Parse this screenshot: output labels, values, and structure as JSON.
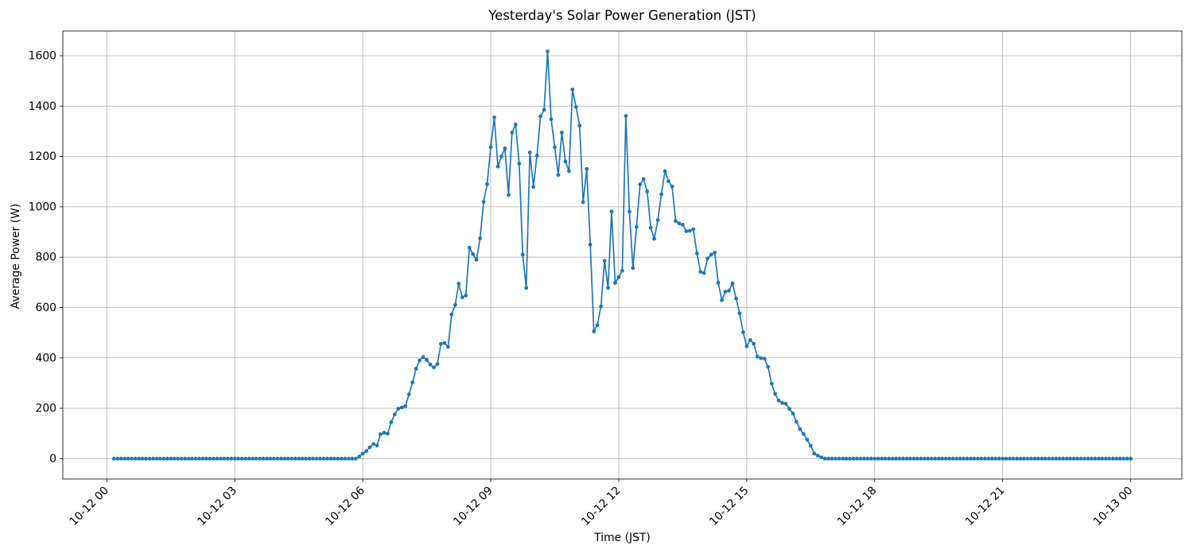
{
  "figure": {
    "title": "Yesterday's Solar Power Generation (JST)",
    "xlabel": "Time (JST)",
    "ylabel": "Average Power (W)",
    "background_color": "#ffffff",
    "line_color": "#1f77b4",
    "grid_color": "#b0b0b0",
    "spine_color": "#000000",
    "text_color": "#000000"
  },
  "chart_data": {
    "type": "line",
    "title": "Yesterday's Solar Power Generation (JST)",
    "xlabel": "Time (JST)",
    "ylabel": "Average Power (W)",
    "grid": true,
    "legend": "none",
    "marker": "circle",
    "x_tick_hours": [
      0,
      3,
      6,
      9,
      12,
      15,
      18,
      21,
      24
    ],
    "x_tick_labels": [
      "10-12 00",
      "10-12 03",
      "10-12 06",
      "10-12 09",
      "10-12 12",
      "10-12 15",
      "10-12 18",
      "10-12 21",
      "10-13 00"
    ],
    "x_tick_rotation_deg": 45,
    "y_ticks": [
      0,
      200,
      400,
      600,
      800,
      1000,
      1200,
      1400,
      1600
    ],
    "xlim_hours": [
      -1.03,
      25.2
    ],
    "ylim": [
      -81,
      1698
    ],
    "series_name": "Average Power (W)",
    "series_start_minutes": 10,
    "series_step_minutes": 5,
    "values": [
      0,
      0,
      0,
      0,
      0,
      0,
      0,
      0,
      0,
      0,
      0,
      0,
      0,
      0,
      0,
      0,
      0,
      0,
      0,
      0,
      0,
      0,
      0,
      0,
      0,
      0,
      0,
      0,
      0,
      0,
      0,
      0,
      0,
      0,
      0,
      0,
      0,
      0,
      0,
      0,
      0,
      0,
      0,
      0,
      0,
      0,
      0,
      0,
      0,
      0,
      0,
      0,
      0,
      0,
      0,
      0,
      0,
      0,
      0,
      0,
      0,
      0,
      0,
      0,
      0,
      0,
      0,
      0,
      0,
      8,
      20,
      30,
      45,
      58,
      52,
      97,
      103,
      99,
      145,
      176,
      198,
      203,
      208,
      255,
      303,
      357,
      390,
      403,
      392,
      374,
      362,
      376,
      456,
      459,
      444,
      572,
      610,
      695,
      640,
      648,
      838,
      812,
      790,
      875,
      1020,
      1090,
      1237,
      1355,
      1160,
      1200,
      1232,
      1047,
      1295,
      1327,
      1172,
      810,
      678,
      1216,
      1079,
      1203,
      1359,
      1385,
      1617,
      1348,
      1237,
      1126,
      1295,
      1180,
      1142,
      1466,
      1396,
      1322,
      1018,
      1150,
      850,
      505,
      530,
      605,
      785,
      678,
      981,
      698,
      720,
      746,
      1361,
      981,
      757,
      920,
      1089,
      1110,
      1061,
      917,
      873,
      947,
      1050,
      1141,
      1102,
      1081,
      944,
      934,
      929,
      903,
      905,
      911,
      815,
      742,
      737,
      795,
      810,
      818,
      698,
      629,
      663,
      667,
      696,
      636,
      577,
      502,
      446,
      471,
      456,
      405,
      399,
      397,
      364,
      298,
      257,
      231,
      221,
      218,
      198,
      179,
      146,
      117,
      98,
      75,
      51,
      20,
      12,
      5,
      0,
      0,
      0,
      0,
      0,
      0,
      0,
      0,
      0,
      0,
      0,
      0,
      0,
      0,
      0,
      0,
      0,
      0,
      0,
      0,
      0,
      0,
      0,
      0,
      0,
      0,
      0,
      0,
      0,
      0,
      0,
      0,
      0,
      0,
      0,
      0,
      0,
      0,
      0,
      0,
      0,
      0,
      0,
      0,
      0,
      0,
      0,
      0,
      0,
      0,
      0,
      0,
      0,
      0,
      0,
      0,
      0,
      0,
      0,
      0,
      0,
      0,
      0,
      0,
      0,
      0,
      0,
      0,
      0,
      0,
      0,
      0,
      0,
      0,
      0,
      0,
      0,
      0,
      0,
      0,
      0,
      0,
      0,
      0,
      0,
      0,
      0
    ]
  }
}
